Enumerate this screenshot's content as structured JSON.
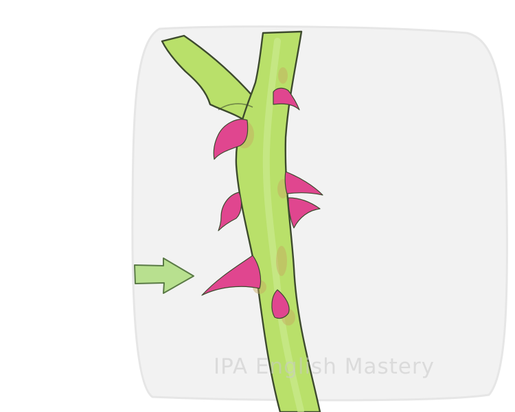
{
  "illustration": {
    "subject": "rose stem with thorns",
    "arrow_target": "thorn",
    "icons": [
      "green-arrow-icon",
      "thorn-icon"
    ]
  },
  "colors": {
    "background_card": "#f2f2f2",
    "stem_fill": "#b9e06a",
    "stem_outline": "#3d4a2e",
    "thorn_fill": "#e0468f",
    "thorn_base": "#c8a860",
    "arrow_fill": "#b8e08f",
    "arrow_outline": "#5a7a46"
  },
  "watermark": {
    "text": "IPA English Mastery"
  }
}
